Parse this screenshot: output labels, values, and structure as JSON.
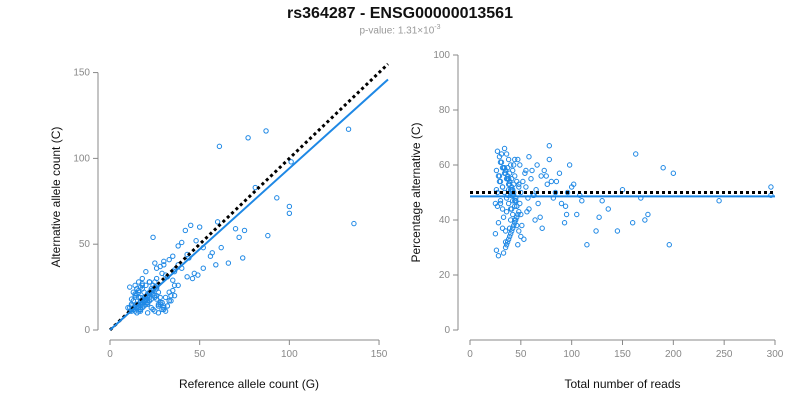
{
  "header": {
    "title": "rs364287 - ENSG00000013561",
    "pvalue_prefix": "p-value: 1.31×10",
    "pvalue_exponent": "-3"
  },
  "chart_data": [
    {
      "type": "scatter",
      "xlabel": "Reference allele count (G)",
      "ylabel": "Alternative allele count (C)",
      "xlim": [
        0,
        155
      ],
      "ylim": [
        0,
        155
      ],
      "xticks": [
        0,
        50,
        100,
        150
      ],
      "yticks": [
        0,
        50,
        100,
        150
      ],
      "grid": false,
      "marker_color": "#1e88e5",
      "expected_line": {
        "style": "dotted",
        "color": "#000000",
        "x": [
          0,
          155
        ],
        "y": [
          0,
          155
        ]
      },
      "fit_line": {
        "style": "solid",
        "color": "#1e88e5",
        "x": [
          0,
          155
        ],
        "y": [
          0,
          146
        ]
      },
      "points": {
        "x": [
          61,
          77,
          87,
          133,
          81,
          101,
          136,
          100,
          100,
          93,
          88,
          70,
          75,
          72,
          74,
          62,
          56,
          66,
          60,
          45,
          50,
          42,
          48,
          40,
          38,
          43,
          35,
          44,
          33,
          30,
          52,
          57,
          59,
          47,
          36,
          43,
          46,
          49,
          52,
          24,
          26,
          28,
          30,
          25,
          22,
          20,
          18,
          16,
          14,
          12,
          11,
          12,
          13,
          14,
          15,
          16,
          17,
          18,
          19,
          20,
          21,
          22,
          23,
          24,
          25,
          26,
          27,
          28,
          29,
          30,
          31,
          32,
          33,
          34,
          35,
          36,
          12,
          14,
          16,
          18,
          20,
          22,
          24,
          26,
          28,
          30,
          32,
          34,
          13,
          15,
          17,
          19,
          21,
          23,
          25,
          27,
          29,
          31,
          33,
          11,
          13,
          15,
          17,
          19,
          21,
          23,
          25,
          27,
          29,
          12,
          14,
          16,
          18,
          20,
          22,
          24,
          26,
          28,
          13,
          15,
          17,
          19,
          21,
          23,
          25,
          27,
          14,
          16,
          18,
          20,
          22,
          24,
          15,
          17,
          19,
          21,
          23,
          25,
          16,
          18,
          20,
          22,
          17,
          19,
          21,
          23,
          10,
          12,
          11,
          15,
          18,
          22,
          26,
          31,
          36,
          40,
          38,
          21,
          24,
          27,
          30,
          33,
          36,
          17,
          19,
          38,
          35,
          32,
          29,
          26,
          14,
          16
        ],
        "y": [
          107,
          112,
          116,
          117,
          83,
          98,
          62,
          72,
          68,
          77,
          55,
          59,
          58,
          54,
          42,
          48,
          43,
          39,
          63,
          61,
          60,
          58,
          52,
          51,
          49,
          44,
          43,
          42,
          41,
          40,
          48,
          45,
          38,
          33,
          35,
          31,
          30,
          32,
          36,
          54,
          36,
          37,
          38,
          39,
          28,
          34,
          30,
          28,
          26,
          14,
          13,
          15,
          17,
          19,
          21,
          23,
          25,
          27,
          16,
          18,
          20,
          22,
          24,
          26,
          28,
          25,
          22,
          19,
          16,
          13,
          11,
          14,
          17,
          20,
          23,
          26,
          18,
          20,
          22,
          24,
          26,
          28,
          21,
          18,
          15,
          12,
          14,
          17,
          22,
          24,
          19,
          17,
          15,
          13,
          11,
          14,
          16,
          19,
          22,
          25,
          13,
          15,
          17,
          19,
          21,
          23,
          25,
          14,
          12,
          11,
          13,
          15,
          17,
          19,
          21,
          23,
          20,
          16,
          12,
          14,
          16,
          18,
          20,
          22,
          19,
          15,
          11,
          13,
          15,
          17,
          19,
          21,
          10,
          12,
          14,
          16,
          18,
          20,
          11,
          13,
          15,
          17,
          12,
          14,
          16,
          18,
          13,
          15,
          11,
          24,
          26,
          28,
          30,
          32,
          34,
          36,
          38,
          10,
          12,
          10,
          14,
          17,
          20,
          11,
          22,
          26,
          29,
          31,
          33,
          24,
          21,
          19
        ]
      }
    },
    {
      "type": "scatter",
      "xlabel": "Total number of reads",
      "ylabel": "Percentage alternative (C)",
      "xlim": [
        0,
        300
      ],
      "ylim": [
        0,
        100
      ],
      "xticks": [
        0,
        50,
        100,
        150,
        200,
        250,
        300
      ],
      "yticks": [
        0,
        20,
        40,
        60,
        80,
        100
      ],
      "grid": false,
      "marker_color": "#1e88e5",
      "expected_line": {
        "style": "dotted",
        "color": "#000000",
        "x": [
          0,
          300
        ],
        "y": [
          50,
          50
        ]
      },
      "fit_line": {
        "style": "solid",
        "color": "#1e88e5",
        "x": [
          0,
          300
        ],
        "y": [
          48.6,
          48.6
        ]
      },
      "points": {
        "x": [
          296,
          296,
          245,
          200,
          196,
          190,
          175,
          172,
          168,
          163,
          160,
          150,
          145,
          136,
          130,
          127,
          124,
          115,
          110,
          108,
          100,
          98,
          96,
          95,
          93,
          88,
          85,
          82,
          80,
          78,
          76,
          75,
          73,
          71,
          69,
          67,
          65,
          63,
          61,
          60,
          58,
          56,
          55,
          54,
          53,
          52,
          51,
          50,
          49,
          48,
          47,
          46,
          45,
          44,
          43,
          42,
          41,
          40,
          39,
          38,
          37,
          36,
          35,
          34,
          33,
          32,
          31,
          30,
          29,
          28,
          27,
          26,
          25,
          50,
          48,
          46,
          44,
          42,
          40,
          38,
          36,
          34,
          32,
          30,
          28,
          26,
          49,
          47,
          45,
          43,
          41,
          39,
          37,
          35,
          33,
          31,
          29,
          27,
          50,
          48,
          46,
          44,
          42,
          40,
          38,
          36,
          34,
          32,
          30,
          48,
          46,
          44,
          42,
          40,
          38,
          36,
          34,
          32,
          47,
          45,
          43,
          41,
          39,
          37,
          35,
          33,
          46,
          44,
          42,
          40,
          38,
          36,
          45,
          43,
          41,
          39,
          37,
          35,
          44,
          42,
          40,
          38,
          43,
          41,
          39,
          37,
          30,
          28,
          26,
          25,
          27,
          29,
          32,
          35,
          55,
          58,
          62,
          66,
          70,
          90,
          102,
          105,
          78,
          84,
          94,
          64,
          57
        ],
        "y": [
          52,
          49,
          47,
          57,
          31,
          59,
          42,
          40,
          48,
          64,
          39,
          51,
          36,
          44,
          47,
          41,
          36,
          31,
          47,
          49,
          52,
          60,
          50,
          42,
          39,
          57,
          54,
          48,
          54,
          67,
          53,
          56,
          58,
          37,
          41,
          46,
          51,
          49,
          58,
          55,
          63,
          43,
          52,
          57,
          33,
          54,
          38,
          42,
          46,
          53,
          31,
          45,
          47,
          62,
          60,
          51,
          44,
          40,
          37,
          55,
          49,
          43,
          36,
          59,
          41,
          52,
          64,
          47,
          56,
          39,
          45,
          51,
          35,
          34,
          36,
          38,
          40,
          42,
          44,
          46,
          48,
          50,
          52,
          54,
          56,
          58,
          60,
          62,
          47,
          49,
          51,
          53,
          55,
          57,
          59,
          61,
          63,
          65,
          50,
          52,
          54,
          56,
          58,
          60,
          62,
          64,
          66,
          44,
          46,
          43,
          45,
          47,
          49,
          51,
          53,
          55,
          57,
          59,
          42,
          40,
          38,
          36,
          34,
          32,
          30,
          28,
          41,
          39,
          37,
          35,
          33,
          31,
          48,
          50,
          52,
          54,
          56,
          58,
          45,
          47,
          49,
          51,
          53,
          55,
          57,
          59,
          61,
          27,
          29,
          46,
          50,
          54,
          37,
          32,
          58,
          44,
          49,
          60,
          56,
          46,
          53,
          42,
          62,
          50,
          45,
          40,
          48
        ]
      }
    }
  ]
}
